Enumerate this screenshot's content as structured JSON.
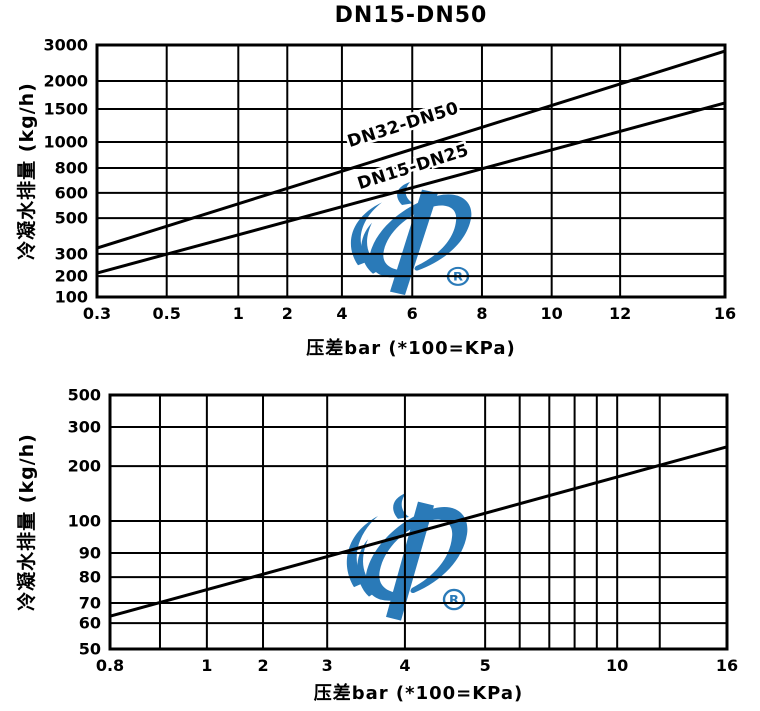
{
  "page": {
    "background": "#ffffff",
    "line_color": "#000000"
  },
  "watermark": {
    "name": "brand-logo-watermark",
    "description": "blue stylized P/1 swirl logo",
    "color": "#2a7ab8",
    "registered_mark": "R"
  },
  "chart_data": [
    {
      "type": "line",
      "title": "DN15-DN50",
      "xlabel": "压差bar (*100=KPa)",
      "ylabel": "冷凝水排量 (kg/h)",
      "x_scale": "stylized-log",
      "y_scale": "stylized-log",
      "xlim": [
        0.3,
        16
      ],
      "ylim": [
        100,
        3000
      ],
      "grid": "full",
      "x_ticks": [
        {
          "label": "0.3",
          "f": 0.0
        },
        {
          "label": "0.5",
          "f": 0.111
        },
        {
          "label": "1",
          "f": 0.225
        },
        {
          "label": "2",
          "f": 0.303
        },
        {
          "label": "4",
          "f": 0.39
        },
        {
          "label": "6",
          "f": 0.502
        },
        {
          "label": "8",
          "f": 0.613
        },
        {
          "label": "10",
          "f": 0.724
        },
        {
          "label": "12",
          "f": 0.833
        },
        {
          "label": "16",
          "f": 1.0
        }
      ],
      "y_ticks": [
        {
          "label": "3000",
          "f": 0.0
        },
        {
          "label": "2000",
          "f": 0.143
        },
        {
          "label": "1500",
          "f": 0.254
        },
        {
          "label": "1000",
          "f": 0.385
        },
        {
          "label": "800",
          "f": 0.488
        },
        {
          "label": "600",
          "f": 0.587
        },
        {
          "label": "500",
          "f": 0.687
        },
        {
          "label": "300",
          "f": 0.829
        },
        {
          "label": "200",
          "f": 0.917
        },
        {
          "label": "100",
          "f": 1.0
        }
      ],
      "series": [
        {
          "name": "DN32-DN50",
          "x": [
            0.3,
            1,
            2,
            4,
            6,
            8,
            10,
            12,
            16
          ],
          "y": [
            320,
            550,
            620,
            780,
            960,
            1200,
            1550,
            1950,
            2880
          ],
          "line_f": [
            [
              0.0,
              0.806
            ],
            [
              1.0,
              0.024
            ]
          ],
          "label_f": [
            0.49,
            0.337
          ],
          "label_angle": -17.5
        },
        {
          "name": "DN15-DN25",
          "x": [
            0.3,
            1,
            2,
            4,
            6,
            8,
            10,
            12,
            16
          ],
          "y": [
            215,
            400,
            490,
            540,
            615,
            795,
            955,
            1140,
            1600
          ],
          "line_f": [
            [
              0.0,
              0.905
            ],
            [
              1.0,
              0.23
            ]
          ],
          "label_f": [
            0.506,
            0.504
          ],
          "label_angle": -17.5
        }
      ]
    },
    {
      "type": "line",
      "title": "",
      "xlabel": "压差bar (*100=KPa)",
      "ylabel": "冷凝水排量 (kg/h)",
      "x_scale": "stylized-log",
      "y_scale": "stylized-log",
      "xlim": [
        0.8,
        16
      ],
      "ylim": [
        50,
        500
      ],
      "grid": "full",
      "x_ticks": [
        {
          "label": "0.8",
          "f": 0.0
        },
        {
          "label": "",
          "f": 0.081
        },
        {
          "label": "1",
          "f": 0.157
        },
        {
          "label": "2",
          "f": 0.248
        },
        {
          "label": "3",
          "f": 0.352
        },
        {
          "label": "4",
          "f": 0.478
        },
        {
          "label": "5",
          "f": 0.608
        },
        {
          "label": "",
          "f": 0.664
        },
        {
          "label": "",
          "f": 0.712
        },
        {
          "label": "",
          "f": 0.753
        },
        {
          "label": "",
          "f": 0.789
        },
        {
          "label": "10",
          "f": 0.822
        },
        {
          "label": "",
          "f": 0.891
        },
        {
          "label": "16",
          "f": 1.0
        }
      ],
      "y_ticks": [
        {
          "label": "500",
          "f": 0.0
        },
        {
          "label": "300",
          "f": 0.126
        },
        {
          "label": "200",
          "f": 0.28
        },
        {
          "label": "100",
          "f": 0.496
        },
        {
          "label": "90",
          "f": 0.622
        },
        {
          "label": "80",
          "f": 0.717
        },
        {
          "label": "70",
          "f": 0.819
        },
        {
          "label": "60",
          "f": 0.898
        },
        {
          "label": "50",
          "f": 1.0
        }
      ],
      "series": [
        {
          "name": "",
          "x": [
            0.8,
            1,
            2,
            3,
            4,
            5,
            10,
            16
          ],
          "y": [
            62,
            72,
            80,
            88,
            95,
            103,
            170,
            245
          ],
          "line_f": [
            [
              0.0,
              0.871
            ],
            [
              1.0,
              0.204
            ]
          ],
          "label_f": null,
          "label_angle": 0
        }
      ]
    }
  ]
}
